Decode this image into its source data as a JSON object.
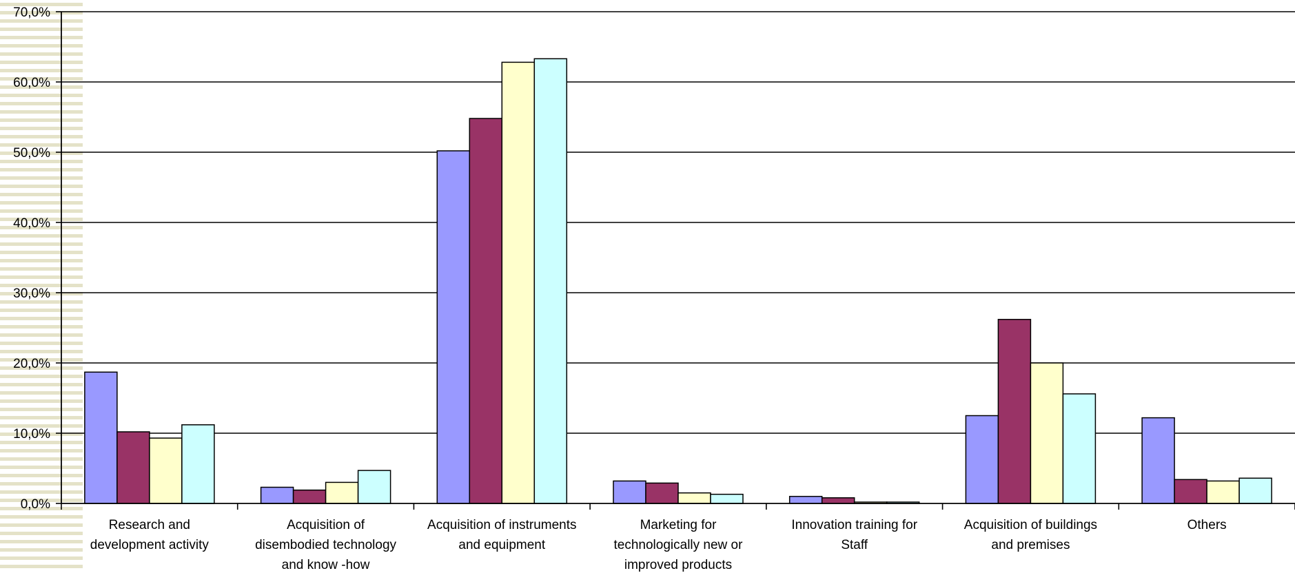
{
  "chart_data": {
    "type": "bar",
    "title": "",
    "xlabel": "",
    "ylabel": "",
    "ylim": [
      0,
      70
    ],
    "y_ticks": [
      "0,0%",
      "10,0%",
      "20,0%",
      "30,0%",
      "40,0%",
      "50,0%",
      "60,0%",
      "70,0%"
    ],
    "grid": true,
    "legend": "none",
    "categories": [
      [
        "Research and",
        "development activity"
      ],
      [
        "Acquisition of",
        "disembodied technology",
        "and know -how"
      ],
      [
        "Acquisition of instruments",
        "and equipment"
      ],
      [
        "Marketing for",
        "technologically new  or",
        "improved products"
      ],
      [
        "Innovation training for",
        "Staff"
      ],
      [
        "Acquisition of buildings",
        "and premises"
      ],
      [
        "Others"
      ]
    ],
    "series": [
      {
        "color": "#9999ff",
        "values": [
          18.7,
          2.3,
          50.2,
          3.2,
          1.0,
          12.5,
          12.2
        ]
      },
      {
        "color": "#993366",
        "values": [
          10.2,
          1.9,
          54.8,
          2.9,
          0.8,
          26.2,
          3.4
        ]
      },
      {
        "color": "#ffffcc",
        "values": [
          9.3,
          3.0,
          62.8,
          1.5,
          0.2,
          20.0,
          3.2
        ]
      },
      {
        "color": "#ccffff",
        "values": [
          11.2,
          4.7,
          63.3,
          1.3,
          0.2,
          15.6,
          3.6
        ]
      }
    ]
  },
  "decor": {
    "stripe_color": "#e4e2c8"
  }
}
